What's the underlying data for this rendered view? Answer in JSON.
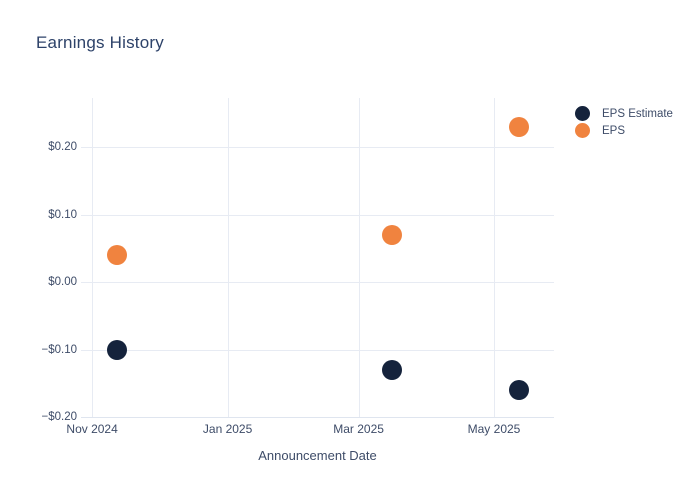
{
  "chart": {
    "title": "Earnings History",
    "xlabel": "Announcement Date"
  },
  "colors": {
    "background": "#ffffff",
    "title_text": "#2d4269",
    "axis_text": "#3e4c68",
    "gridline": "#e7ebf3",
    "axis_line": "#dfe5ef",
    "eps_estimate": "#15233c",
    "eps": "#f0833f"
  },
  "chart_data": {
    "type": "scatter",
    "title": "Earnings History",
    "xlabel": "Announcement Date",
    "ylabel": "",
    "grid": true,
    "legend_position": "right-top",
    "x_range": [
      "2024-10-27",
      "2025-05-28"
    ],
    "ylim": [
      -0.2,
      0.273
    ],
    "x_ticks": [
      {
        "date": "2024-11-01",
        "label": "Nov 2024"
      },
      {
        "date": "2025-01-01",
        "label": "Jan 2025"
      },
      {
        "date": "2025-03-01",
        "label": "Mar 2025"
      },
      {
        "date": "2025-05-01",
        "label": "May 2025"
      }
    ],
    "y_ticks": [
      {
        "value": 0.2,
        "label": "$0.20"
      },
      {
        "value": 0.1,
        "label": "$0.10"
      },
      {
        "value": 0.0,
        "label": "$0.00"
      },
      {
        "value": -0.1,
        "label": "−$0.10"
      },
      {
        "value": -0.2,
        "label": "−$0.20"
      }
    ],
    "series": [
      {
        "name": "EPS Estimate",
        "color": "#15233c",
        "points": [
          {
            "x": "2024-11-12",
            "y": -0.1
          },
          {
            "x": "2025-03-16",
            "y": -0.13
          },
          {
            "x": "2025-05-12",
            "y": -0.16
          }
        ]
      },
      {
        "name": "EPS",
        "color": "#f0833f",
        "points": [
          {
            "x": "2024-11-12",
            "y": 0.04
          },
          {
            "x": "2025-03-16",
            "y": 0.07
          },
          {
            "x": "2025-05-12",
            "y": 0.23
          }
        ]
      }
    ]
  }
}
